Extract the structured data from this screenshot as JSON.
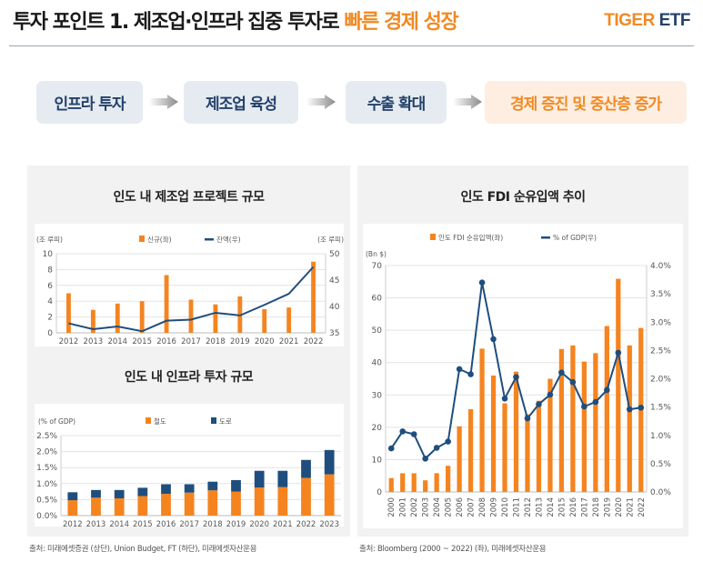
{
  "header": {
    "title_main": "투자 포인트 1. 제조업·인프라 집중 투자로 ",
    "title_highlight": "빠른 경제 성장",
    "logo_tiger": "TIGER",
    "logo_etf": "ETF"
  },
  "flow": [
    {
      "label": "인프라 투자"
    },
    {
      "label": "제조업 육성"
    },
    {
      "label": "수출 확대"
    },
    {
      "label": "경제 증진 및 중산층 증가"
    }
  ],
  "colors": {
    "orange": "#f5841f",
    "navy": "#1f4e7e",
    "accent": "#f08a24"
  },
  "chart_data": [
    {
      "type": "bar+line",
      "title": "인도 내 제조업 프로젝트 규모",
      "ylabel_left": "(조 루피)",
      "ylabel_right": "(조 루피)",
      "categories": [
        "2012",
        "2013",
        "2014",
        "2015",
        "2016",
        "2017",
        "2018",
        "2019",
        "2020",
        "2021",
        "2022"
      ],
      "series": [
        {
          "name": "신규(좌)",
          "type": "bar",
          "axis": "left",
          "values": [
            5.0,
            2.9,
            3.7,
            4.0,
            7.3,
            4.2,
            3.6,
            4.6,
            3.0,
            3.2,
            9.0
          ]
        },
        {
          "name": "잔액(우)",
          "type": "line",
          "axis": "right",
          "values": [
            36.8,
            35.7,
            36.2,
            35.3,
            37.3,
            37.5,
            38.8,
            38.3,
            40.3,
            42.4,
            47.5
          ]
        }
      ],
      "ylim_left": [
        0,
        10
      ],
      "yticks_left": [
        "0",
        "2",
        "4",
        "6",
        "8",
        "10"
      ],
      "ylim_right": [
        35,
        50
      ],
      "yticks_right": [
        "35",
        "40",
        "45",
        "50"
      ],
      "legend": "top"
    },
    {
      "type": "stacked-bar",
      "title": "인도 내 인프라 투자 규모",
      "ylabel_left": "(% of GDP)",
      "categories": [
        "2012",
        "2013",
        "2014",
        "2015",
        "2016",
        "2017",
        "2018",
        "2019",
        "2020",
        "2021",
        "2022",
        "2023"
      ],
      "series": [
        {
          "name": "철도",
          "values": [
            0.48,
            0.56,
            0.54,
            0.61,
            0.68,
            0.72,
            0.79,
            0.75,
            0.88,
            0.89,
            1.18,
            1.29
          ]
        },
        {
          "name": "도로",
          "values": [
            0.25,
            0.24,
            0.26,
            0.26,
            0.3,
            0.26,
            0.27,
            0.36,
            0.52,
            0.51,
            0.56,
            0.76
          ]
        }
      ],
      "ylim_left": [
        0,
        2.5
      ],
      "yticks_left": [
        "0.0%",
        "0.5%",
        "1.0%",
        "1.5%",
        "2.0%",
        "2.5%"
      ],
      "legend": "top"
    },
    {
      "type": "bar+line",
      "title": "인도 FDI 순유입액 추이",
      "ylabel_left": "(Bn $)",
      "categories": [
        "2000",
        "2001",
        "2002",
        "2003",
        "2004",
        "2005",
        "2006",
        "2007",
        "2008",
        "2009",
        "2010",
        "2011",
        "2012",
        "2013",
        "2014",
        "2015",
        "2016",
        "2017",
        "2018",
        "2019",
        "2020",
        "2021",
        "2022"
      ],
      "series": [
        {
          "name": "인도 FDI 순유입액(좌)",
          "type": "bar",
          "axis": "left",
          "values": [
            4.3,
            5.8,
            5.8,
            3.6,
            5.8,
            8.1,
            20.3,
            25.6,
            44.3,
            36.0,
            27.4,
            37.2,
            24.0,
            28.2,
            35.0,
            44.2,
            45.3,
            40.3,
            42.9,
            51.3,
            65.9,
            45.3,
            50.7
          ]
        },
        {
          "name": "% of GDP(우)",
          "type": "line",
          "axis": "right",
          "values": [
            0.77,
            1.07,
            1.02,
            0.59,
            0.78,
            0.89,
            2.17,
            2.08,
            3.7,
            2.7,
            1.65,
            2.03,
            1.3,
            1.55,
            1.72,
            2.11,
            1.94,
            1.51,
            1.59,
            1.8,
            2.46,
            1.46,
            1.49
          ]
        }
      ],
      "ylim_left": [
        0,
        70
      ],
      "yticks_left": [
        "0",
        "10",
        "20",
        "30",
        "40",
        "50",
        "60",
        "70"
      ],
      "ylim_right": [
        0,
        4
      ],
      "yticks_right": [
        "0.0%",
        "0.5%",
        "1.0%",
        "1.5%",
        "2.0%",
        "2.5%",
        "3.0%",
        "3.5%",
        "4.0%"
      ],
      "legend": "top"
    }
  ],
  "footnotes": {
    "left": "출처: 미래에셋증권 (상단), Union Budget, FT (하단), 미래에셋자산운용",
    "right": "출처: Bloomberg (2000 ~ 2022) (좌), 미래에셋자산운용"
  }
}
